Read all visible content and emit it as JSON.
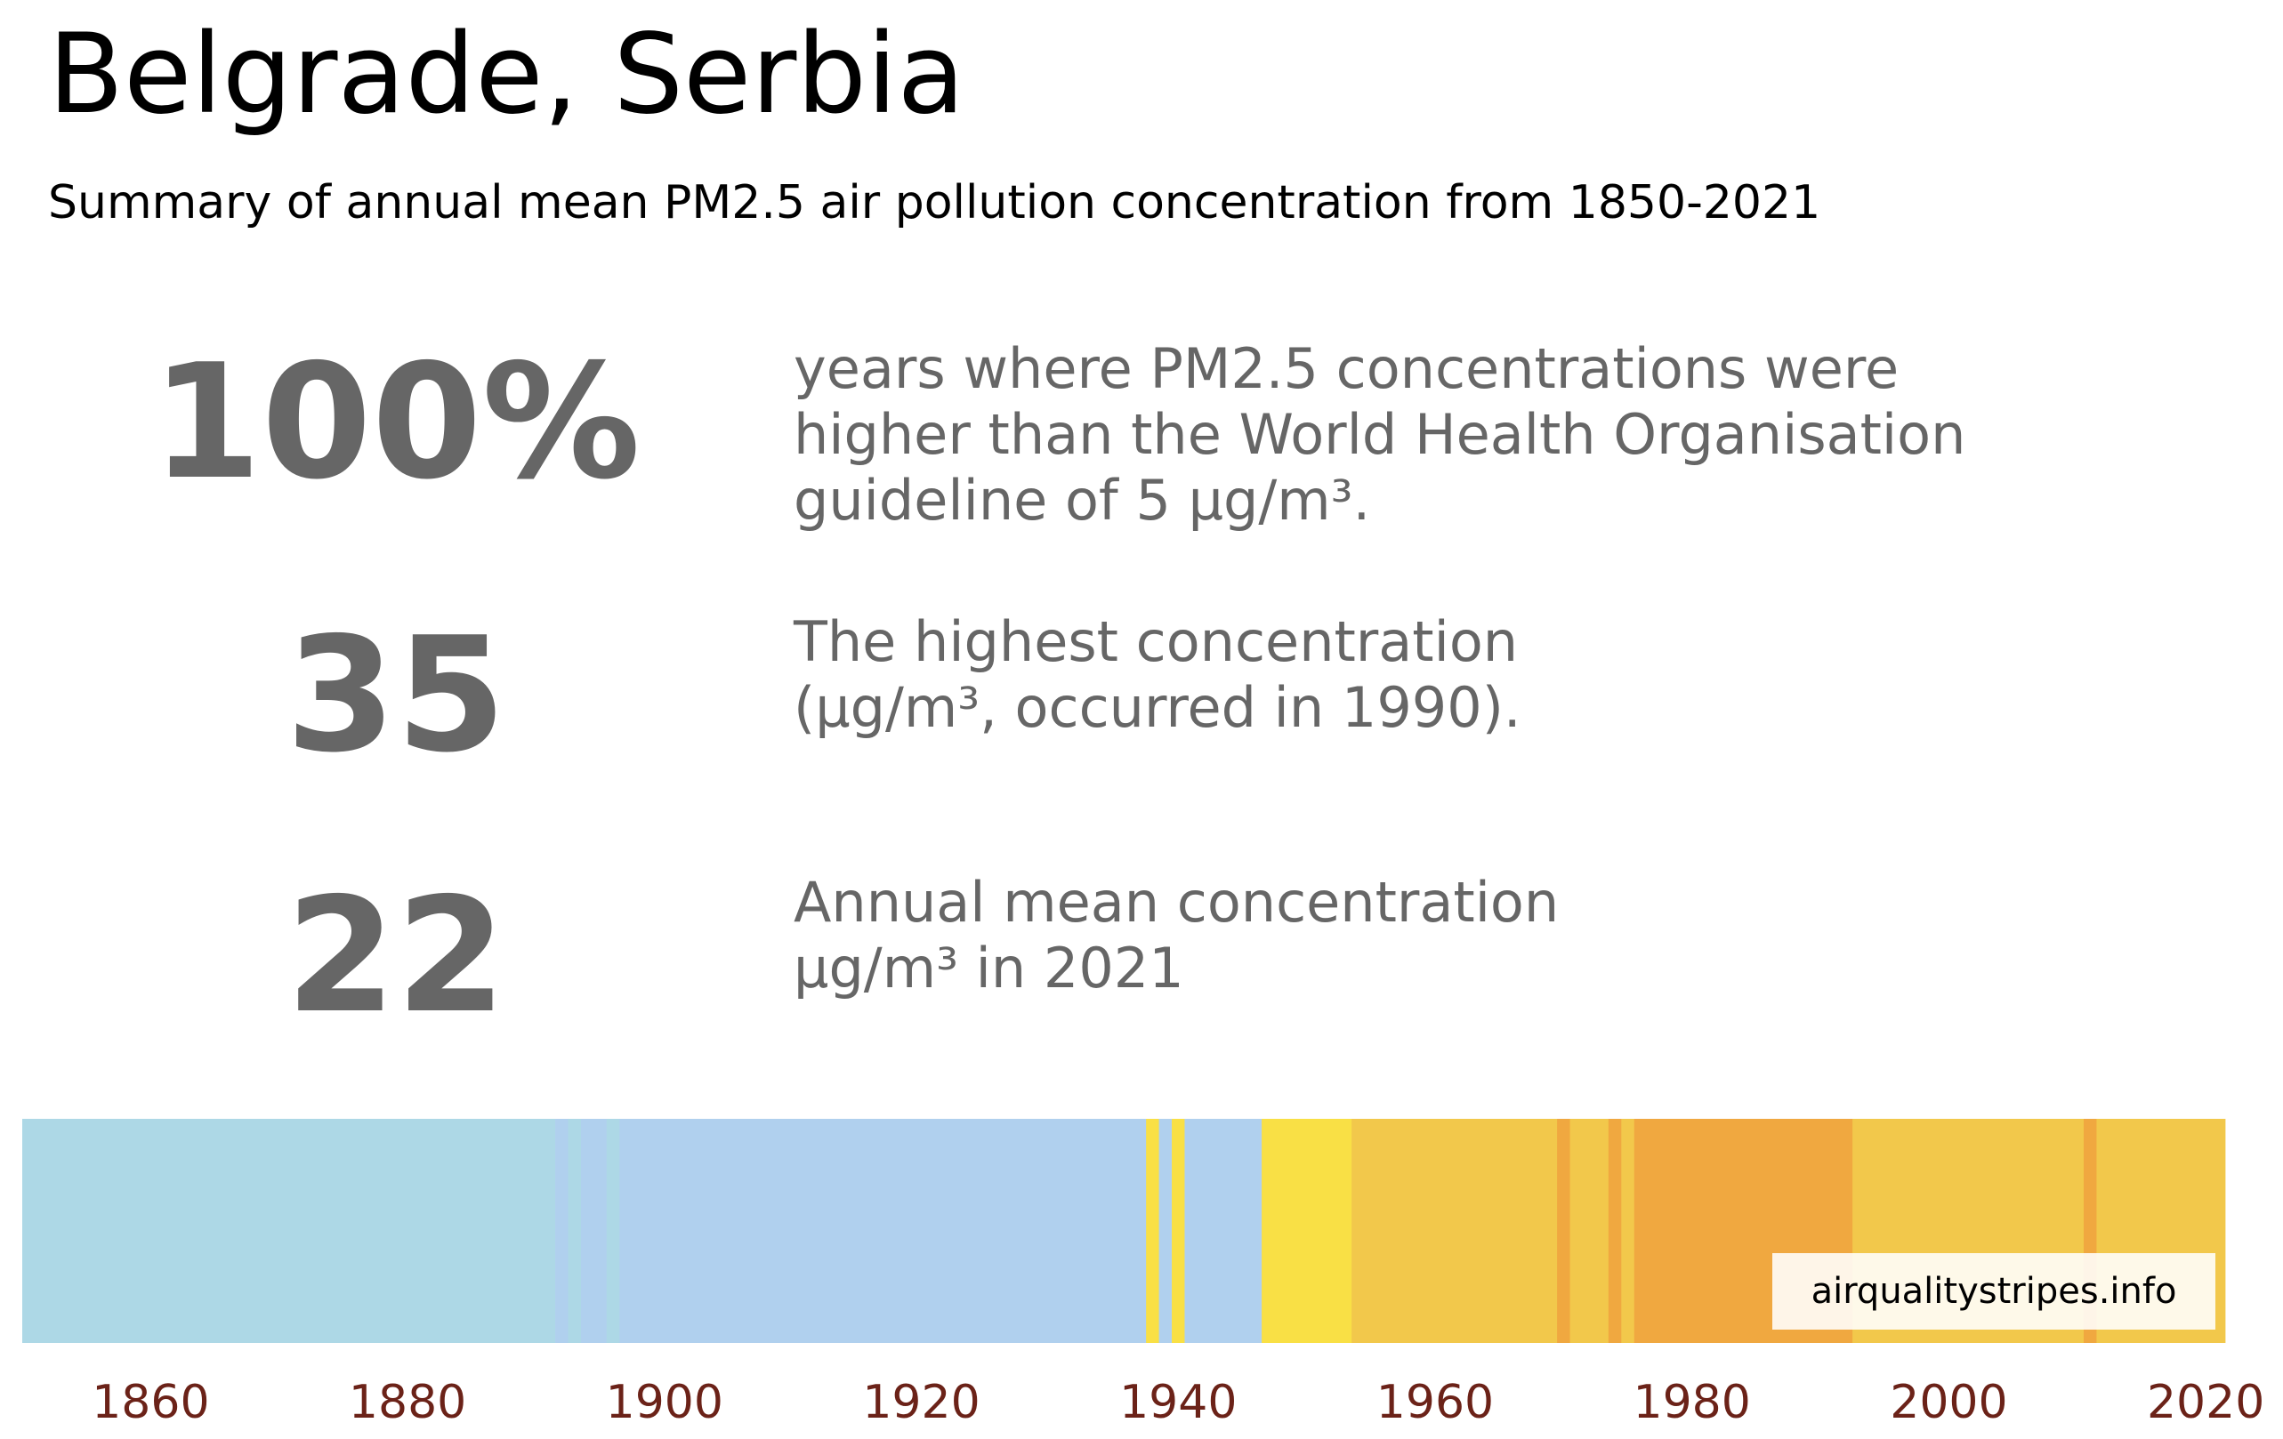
{
  "header": {
    "title": "Belgrade, Serbia",
    "subtitle": "Summary of annual mean PM2.5 air pollution concentration from 1850-2021"
  },
  "stats": [
    {
      "value": "100%",
      "lines": [
        "years where PM2.5 concentrations were",
        "higher than the World Health Organisation",
        "guideline of 5 µg/m³."
      ]
    },
    {
      "value": "35",
      "lines": [
        "The highest concentration",
        "(µg/m³, occurred in 1990)."
      ]
    },
    {
      "value": "22",
      "lines": [
        "Annual mean concentration",
        "µg/m³ in 2021"
      ]
    }
  ],
  "watermark": "airqualitystripes.info",
  "colors": {
    "text_primary": "#000000",
    "text_stat": "#666666",
    "tick_label": "#6b2218"
  },
  "chart_data": {
    "type": "heatmap",
    "description_type": "air quality stripes",
    "xlim": [
      1850,
      2022
    ],
    "x_ticks": [
      1860,
      1880,
      1900,
      1920,
      1940,
      1960,
      1980,
      2000,
      2020
    ],
    "x_tick_labels": [
      "1860",
      "1880",
      "1900",
      "1920",
      "1940",
      "1960",
      "1980",
      "2000",
      "2020"
    ],
    "segments": [
      {
        "start": 1850,
        "end": 1891.5,
        "color": "#add8e6"
      },
      {
        "start": 1891.5,
        "end": 1892.5,
        "color": "#b0d0ee"
      },
      {
        "start": 1892.5,
        "end": 1893.5,
        "color": "#add8e6"
      },
      {
        "start": 1893.5,
        "end": 1895.5,
        "color": "#b0d0ee"
      },
      {
        "start": 1895.5,
        "end": 1896.5,
        "color": "#add8e6"
      },
      {
        "start": 1896.5,
        "end": 1937.5,
        "color": "#b0d0ee"
      },
      {
        "start": 1937.5,
        "end": 1938.5,
        "color": "#f9e045"
      },
      {
        "start": 1938.5,
        "end": 1939.5,
        "color": "#b0d0ee"
      },
      {
        "start": 1939.5,
        "end": 1940.5,
        "color": "#f9e045"
      },
      {
        "start": 1940.5,
        "end": 1946.5,
        "color": "#b0d0ee"
      },
      {
        "start": 1946.5,
        "end": 1953.5,
        "color": "#f9e045"
      },
      {
        "start": 1953.5,
        "end": 1969.5,
        "color": "#f2c84b"
      },
      {
        "start": 1969.5,
        "end": 1970.5,
        "color": "#f0a840"
      },
      {
        "start": 1970.5,
        "end": 1973.5,
        "color": "#f2c84b"
      },
      {
        "start": 1973.5,
        "end": 1974.5,
        "color": "#f0a840"
      },
      {
        "start": 1974.5,
        "end": 1975.5,
        "color": "#f2c84b"
      },
      {
        "start": 1975.5,
        "end": 1992.5,
        "color": "#f0a840"
      },
      {
        "start": 1992.5,
        "end": 2010.5,
        "color": "#f2c84b"
      },
      {
        "start": 2010.5,
        "end": 2011.5,
        "color": "#f0a840"
      },
      {
        "start": 2011.5,
        "end": 2021.5,
        "color": "#f2c84b"
      }
    ]
  }
}
